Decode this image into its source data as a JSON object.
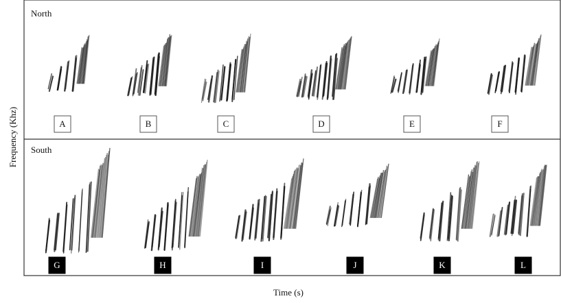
{
  "panels": [
    {
      "label": "North",
      "specimens": [
        "A",
        "B",
        "C",
        "D",
        "E",
        "F"
      ]
    },
    {
      "label": "South",
      "specimens": [
        "G",
        "H",
        "I",
        "J",
        "K",
        "L"
      ]
    }
  ],
  "y_axis_label": "Frequency (Khz)",
  "x_axis_label": "Time (s)"
}
